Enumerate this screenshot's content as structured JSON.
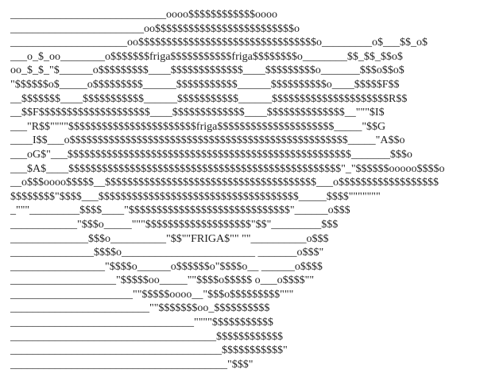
{
  "art": {
    "lines": [
      "____________________________oooo$$$$$$$$$$$$oooo",
      "________________________oo$$$$$$$$$$$$$$$$$$$$$$$$$o",
      "_____________________oo$$$$$$$$$$$$$$$$$$$$$$$$$$$$$$$$o_________o$___$$_o$",
      "___o_$_oo________o$$$$$$$friga$$$$$$$$$$$friga$$$$$$$$o________$$_$$_$$o$",
      "oo_$_$_\"$______o$$$$$$$$$____$$$$$$$$$$$$$____$$$$$$$$$o_______$$$o$$o$",
      "\"$$$$$$o$_____o$$$$$$$$$______$$$$$$$$$$$______$$$$$$$$$$o____$$$$$F$$",
      "__$$$$$$$____$$$$$$$$$$$______$$$$$$$$$$$______$$$$$$$$$$$$$$$$$$$$$R$$",
      "__$$F$$$$$$$$$$$$$$$$$$$$____$$$$$$$$$$$$$____$$$$$$$$$$$$$$__\"\"\"$I$",
      "___\"R$$\"\"\"\"$$$$$$$$$$$$$$$$$$$$$$$friga$$$$$$$$$$$$$$$$$$$$$_____\"$$G",
      "____I$$___o$$$$$$$$$$$$$$$$$$$$$$$$$$$$$$$$$$$$$$$$$$$$$$$$$$_____\"A$$o",
      "___oG$\"___$$$$$$$$$$$$$$$$$$$$$$$$$$$$$$$$$$$$$$$$$$$$$$$$$$$_______$$$o",
      "___$A$____$$$$$$$$$$$$$$$$$$$$$$$$$$$$$$$$$$$$$$$$$$$$$$$$$\"_\"$$$$$$ooooo$$$$o",
      "__o$$$oooo$$$$$__$$$$$$$$$$$$$$$$$$$$$$$$$$$$$$$$$$$$$$___o$$$$$$$$$$$$$$$$$$",
      "$$$$$$$$\"$$$$___$$$$$$$$$$$$$$$$$$$$$$$$$$$$$$$$$$$$_____$$$$\"\"\"\"\"\"\"",
      "_\"\"\"_________$$$$____\"$$$$$$$$$$$$$$$$$$$$$$$$$$$$$\"______o$$$",
      "____________\"$$$o_____\"\"\"$$$$$$$$$$$$$$$$$$$\"$$\"_________$$$",
      "______________$$$o__________\"$$\"\"FRIGA$\"\" \"\"__________o$$$",
      "_______________$$$$o________________________ _______o$$$\"",
      "_________________\"$$$$o______o$$$$$$o\"$$$$o__ ______o$$$$",
      "___________________\"$$$$$oo_____\"\"$$$$o$$$$$ o___o$$$$\"\"",
      "______________________\"\"$$$$$oooo__\"$$$o$$$$$$$$$\"\"\"",
      "_________________________\"\"$$$$$$$oo_$$$$$$$$$$",
      "_________________________________\"\"\"\"$$$$$$$$$$$",
      "_____________________________________$$$$$$$$$$$$",
      "______________________________________$$$$$$$$$$$\"",
      "_______________________________________\"$$$\""
    ]
  }
}
